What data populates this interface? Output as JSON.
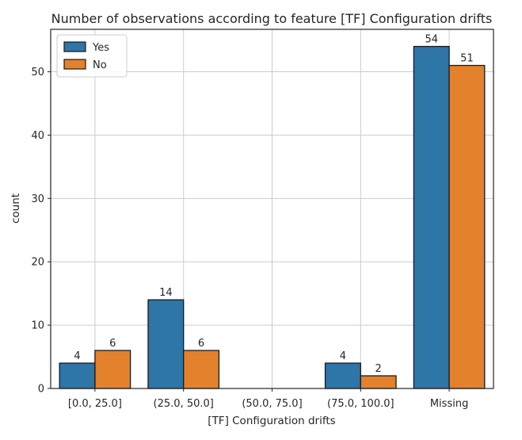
{
  "chart_data": {
    "type": "bar",
    "title": "Number of observations according to feature [TF] Configuration drifts",
    "xlabel": "[TF] Configuration drifts",
    "ylabel": "count",
    "categories": [
      "[0.0, 25.0]",
      "(25.0, 50.0]",
      "(50.0, 75.0]",
      "(75.0, 100.0]",
      "Missing"
    ],
    "series": [
      {
        "name": "Yes",
        "color": "#2e75a8",
        "values": [
          4,
          14,
          0,
          4,
          54
        ],
        "labels": [
          "4",
          "14",
          "",
          "4",
          "54"
        ]
      },
      {
        "name": "No",
        "color": "#e3812c",
        "values": [
          6,
          6,
          0,
          2,
          51
        ],
        "labels": [
          "6",
          "6",
          "",
          "2",
          "51"
        ]
      }
    ],
    "ylim": [
      0,
      56.7
    ],
    "yticks": [
      0,
      10,
      20,
      30,
      40,
      50
    ],
    "ytick_labels": [
      "0",
      "10",
      "20",
      "30",
      "40",
      "50"
    ],
    "grid": true,
    "legend_position": "top-left"
  }
}
